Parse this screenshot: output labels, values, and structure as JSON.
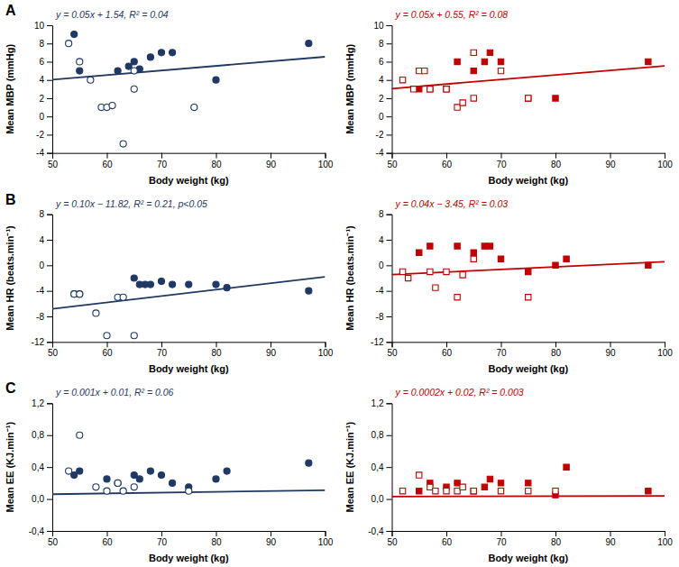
{
  "chart_data": [
    {
      "type": "scatter",
      "title": "A",
      "color": "#1f3864",
      "grid": false,
      "xlabel": "Body weight (kg)",
      "ylabel": "Mean MBP (mmHg)",
      "xlim": [
        50,
        100
      ],
      "xticks": [
        50,
        60,
        70,
        80,
        90,
        100
      ],
      "ylim": [
        -4,
        10
      ],
      "yticks": [
        -4,
        -2,
        0,
        2,
        4,
        6,
        8,
        10
      ],
      "annotations": [
        {
          "text": "y = 0.05x + 1.54, R² = 0.04"
        }
      ],
      "series": [
        {
          "type": "scatter",
          "marker": "circle",
          "color": "#1f3864",
          "x": [
            54,
            55,
            62,
            64,
            65,
            66,
            68,
            70,
            72,
            80,
            97
          ],
          "values": [
            9,
            5,
            5,
            5.5,
            6,
            5.2,
            6.5,
            7,
            7,
            4,
            8
          ]
        },
        {
          "type": "scatter",
          "marker": "circle-open",
          "color": "#1f3864",
          "x": [
            53,
            55,
            57,
            59,
            60,
            61,
            63,
            65,
            65,
            76
          ],
          "values": [
            8,
            6,
            4,
            1,
            1,
            1.2,
            -3,
            3,
            5,
            1
          ]
        },
        {
          "type": "line",
          "line_style": "solid",
          "color": "#1f3864",
          "x": [
            50,
            100
          ],
          "values": [
            4.04,
            6.54
          ]
        }
      ]
    },
    {
      "type": "scatter",
      "color": "#c00000",
      "grid": false,
      "xlabel": "Body weight (kg)",
      "ylabel": "Mean MBP (mmHg)",
      "xlim": [
        50,
        100
      ],
      "xticks": [
        50,
        60,
        70,
        80,
        90,
        100
      ],
      "ylim": [
        -4,
        10
      ],
      "yticks": [
        -4,
        -2,
        0,
        2,
        4,
        6,
        8,
        10
      ],
      "annotations": [
        {
          "text": "y = 0.05x + 0.55, R² = 0.08"
        }
      ],
      "series": [
        {
          "type": "scatter",
          "marker": "square",
          "color": "#c00000",
          "x": [
            55,
            57,
            60,
            62,
            65,
            67,
            68,
            70,
            75,
            80,
            97
          ],
          "values": [
            3,
            3,
            3,
            6,
            5,
            6,
            7,
            6,
            2,
            2,
            6
          ]
        },
        {
          "type": "scatter",
          "marker": "square-open",
          "color": "#c00000",
          "x": [
            52,
            54,
            55,
            56,
            57,
            60,
            62,
            63,
            65,
            65,
            70,
            75
          ],
          "values": [
            4,
            3,
            5,
            5,
            3,
            3,
            1,
            1.5,
            2,
            7,
            5,
            2
          ]
        },
        {
          "type": "line",
          "line_style": "solid",
          "color": "#c00000",
          "x": [
            50,
            100
          ],
          "values": [
            3.05,
            5.55
          ]
        }
      ]
    },
    {
      "type": "scatter",
      "title": "B",
      "color": "#1f3864",
      "grid": false,
      "xlabel": "Body weight (kg)",
      "ylabel": "Mean HR (beats.min⁻¹)",
      "xlim": [
        50,
        100
      ],
      "xticks": [
        50,
        60,
        70,
        80,
        90,
        100
      ],
      "ylim": [
        -12,
        8
      ],
      "yticks": [
        -12,
        -8,
        -4,
        0,
        4,
        8
      ],
      "annotations": [
        {
          "text": "y = 0.10x − 11.82, R² = 0.21, p<0.05"
        }
      ],
      "series": [
        {
          "type": "scatter",
          "marker": "circle",
          "color": "#1f3864",
          "x": [
            54,
            55,
            65,
            66,
            67,
            68,
            70,
            72,
            75,
            80,
            82,
            97
          ],
          "values": [
            -4.5,
            -4.5,
            -2,
            -3,
            -3,
            -3,
            -2.5,
            -3,
            -3,
            -3,
            -3.5,
            -4
          ]
        },
        {
          "type": "scatter",
          "marker": "circle-open",
          "color": "#1f3864",
          "x": [
            54,
            55,
            58,
            60,
            62,
            63,
            65
          ],
          "values": [
            -4.5,
            -4.5,
            -7.5,
            -11,
            -5,
            -5,
            -11
          ]
        },
        {
          "type": "line",
          "line_style": "solid",
          "color": "#1f3864",
          "x": [
            50,
            100
          ],
          "values": [
            -6.82,
            -1.82
          ]
        }
      ]
    },
    {
      "type": "scatter",
      "color": "#c00000",
      "grid": false,
      "xlabel": "Body weight (kg)",
      "ylabel": "Mean HR (beats.min⁻¹)",
      "xlim": [
        50,
        100
      ],
      "xticks": [
        50,
        60,
        70,
        80,
        90,
        100
      ],
      "ylim": [
        -12,
        8
      ],
      "yticks": [
        -12,
        -8,
        -4,
        0,
        4,
        8
      ],
      "annotations": [
        {
          "text": "y = 0.04x − 3.45, R² = 0.03"
        }
      ],
      "series": [
        {
          "type": "scatter",
          "marker": "square",
          "color": "#c00000",
          "x": [
            55,
            57,
            62,
            65,
            67,
            68,
            70,
            75,
            80,
            82,
            97
          ],
          "values": [
            2,
            3,
            3,
            2,
            3,
            3,
            1,
            -1,
            0,
            1,
            0
          ]
        },
        {
          "type": "scatter",
          "marker": "square-open",
          "color": "#c00000",
          "x": [
            52,
            53,
            57,
            58,
            60,
            62,
            63,
            65,
            75
          ],
          "values": [
            -1,
            -2,
            -1,
            -3.5,
            -1,
            -5,
            -1.5,
            1,
            -5
          ]
        },
        {
          "type": "line",
          "line_style": "solid",
          "color": "#c00000",
          "x": [
            50,
            100
          ],
          "values": [
            -1.45,
            0.55
          ]
        }
      ]
    },
    {
      "type": "scatter",
      "title": "C",
      "color": "#1f3864",
      "grid": false,
      "xlabel": "Body weight (kg)",
      "ylabel": "Mean EE (KJ.min⁻¹)",
      "xlim": [
        50,
        100
      ],
      "xticks": [
        50,
        60,
        70,
        80,
        90,
        100
      ],
      "ylim": [
        -0.4,
        1.2
      ],
      "yticks": [
        {
          "value": -0.4,
          "label": "-0,4"
        },
        {
          "value": 0.0,
          "label": "0,0"
        },
        {
          "value": 0.4,
          "label": "0,4"
        },
        {
          "value": 0.8,
          "label": "0,8"
        },
        {
          "value": 1.2,
          "label": "1,2"
        }
      ],
      "annotations": [
        {
          "text": "y = 0.001x + 0.01, R² = 0.06"
        }
      ],
      "series": [
        {
          "type": "scatter",
          "marker": "circle",
          "color": "#1f3864",
          "x": [
            54,
            55,
            60,
            62,
            65,
            66,
            68,
            70,
            72,
            75,
            80,
            82,
            97
          ],
          "values": [
            0.3,
            0.35,
            0.25,
            0.2,
            0.3,
            0.25,
            0.35,
            0.3,
            0.2,
            0.15,
            0.25,
            0.35,
            0.45
          ]
        },
        {
          "type": "scatter",
          "marker": "circle-open",
          "color": "#1f3864",
          "x": [
            53,
            55,
            58,
            60,
            62,
            63,
            65,
            75
          ],
          "values": [
            0.35,
            0.8,
            0.15,
            0.1,
            0.2,
            0.1,
            0.15,
            0.1
          ]
        },
        {
          "type": "line",
          "line_style": "solid",
          "color": "#1f3864",
          "x": [
            50,
            100
          ],
          "values": [
            0.06,
            0.11
          ]
        }
      ]
    },
    {
      "type": "scatter",
      "color": "#c00000",
      "grid": false,
      "xlabel": "Body weight (kg)",
      "ylabel": "Mean EE (KJ.min⁻¹)",
      "xlim": [
        50,
        100
      ],
      "xticks": [
        50,
        60,
        70,
        80,
        90,
        100
      ],
      "ylim": [
        -0.4,
        1.2
      ],
      "yticks": [
        {
          "value": -0.4,
          "label": "-0,4"
        },
        {
          "value": 0.0,
          "label": "0,0"
        },
        {
          "value": 0.4,
          "label": "0,4"
        },
        {
          "value": 0.8,
          "label": "0,8"
        },
        {
          "value": 1.2,
          "label": "1,2"
        }
      ],
      "annotations": [
        {
          "text": "y = 0.0002x + 0.02, R² = 0.003"
        }
      ],
      "series": [
        {
          "type": "scatter",
          "marker": "square",
          "color": "#c00000",
          "x": [
            55,
            57,
            60,
            62,
            65,
            67,
            68,
            70,
            75,
            80,
            82,
            97
          ],
          "values": [
            0.1,
            0.2,
            0.15,
            0.2,
            0.1,
            0.15,
            0.25,
            0.2,
            0.2,
            0.05,
            0.4,
            0.1
          ]
        },
        {
          "type": "scatter",
          "marker": "square-open",
          "color": "#c00000",
          "x": [
            52,
            55,
            57,
            58,
            60,
            62,
            63,
            65,
            70,
            75,
            80
          ],
          "values": [
            0.1,
            0.3,
            0.15,
            0.1,
            0.1,
            0.1,
            0.15,
            0.1,
            0.1,
            0.1,
            0.1
          ]
        },
        {
          "type": "line",
          "line_style": "solid",
          "color": "#c00000",
          "x": [
            50,
            100
          ],
          "values": [
            0.03,
            0.04
          ]
        }
      ]
    }
  ]
}
